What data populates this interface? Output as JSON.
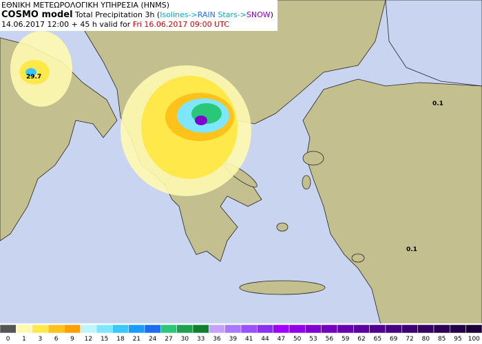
{
  "header": {
    "agency": "ΕΘΝΙΚΗ ΜΕΤΕΩΡΟΛΟΓΙΚΗ ΥΠΗΡΕΣΙΑ (HNMS)",
    "model": "COSMO model",
    "product": "Total Precipitation 3h (",
    "isolines": "Isolines->",
    "rain": "RAIN",
    "stars": " Stars->",
    "snow": "SNOW",
    "close": ")",
    "run": "14.06.2017 12:00 + 45 h valid for ",
    "valid": "Fri 16.06.2017 09:00 UTC"
  },
  "map_labels": [
    "29.7",
    "0.1",
    "0.1"
  ],
  "colorbar": {
    "labels": [
      0,
      1,
      3,
      6,
      9,
      12,
      15,
      18,
      21,
      24,
      27,
      30,
      33,
      36,
      39,
      41,
      44,
      47,
      50,
      53,
      56,
      59,
      62,
      65,
      69,
      72,
      80,
      85,
      95,
      100
    ],
    "colors": [
      "#555555",
      "#fff9b0",
      "#ffe84a",
      "#ffc21a",
      "#ffa000",
      "#bff5ff",
      "#7fe6ff",
      "#38c8ff",
      "#1a9cff",
      "#1a6cf0",
      "#28c878",
      "#1fa050",
      "#108030",
      "#c8a0ff",
      "#a878ff",
      "#9a50ff",
      "#8a30f0",
      "#a000ff",
      "#9000e8",
      "#8000d0",
      "#7400c0",
      "#6800b0",
      "#5c00a0",
      "#500090",
      "#460080",
      "#3c0070",
      "#340062",
      "#2c0054",
      "#240046",
      "#1c0038"
    ]
  }
}
